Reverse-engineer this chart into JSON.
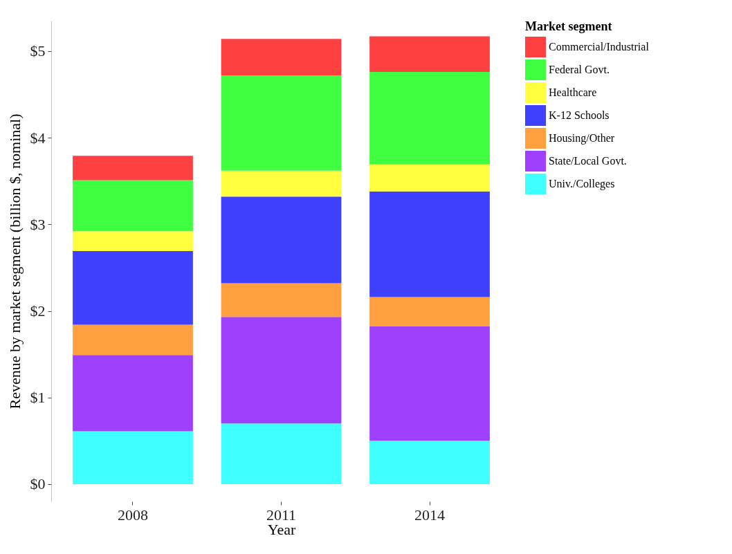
{
  "chart_data": {
    "type": "bar",
    "stacked": true,
    "xlabel": "Year",
    "ylabel": "Revenue by market segment (billion $, nominal)",
    "legend_title": "Market segment",
    "legend": "right",
    "grid": false,
    "categories": [
      "2008",
      "2011",
      "2014"
    ],
    "ylim": [
      -0.2,
      5.35
    ],
    "yticks": [
      {
        "value": 0,
        "label": "$0"
      },
      {
        "value": 1,
        "label": "$1"
      },
      {
        "value": 2,
        "label": "$2"
      },
      {
        "value": 3,
        "label": "$3"
      },
      {
        "value": 4,
        "label": "$4"
      },
      {
        "value": 5,
        "label": "$5"
      }
    ],
    "series": [
      {
        "name": "Univ./Colleges",
        "color": "#40ffff",
        "values": [
          0.61,
          0.7,
          0.5
        ]
      },
      {
        "name": "State/Local Govt.",
        "color": "#9f40ff",
        "values": [
          0.88,
          1.23,
          1.32
        ]
      },
      {
        "name": "Housing/Other",
        "color": "#ff9f40",
        "values": [
          0.35,
          0.39,
          0.34
        ]
      },
      {
        "name": "K-12 Schools",
        "color": "#4040ff",
        "values": [
          0.85,
          1.0,
          1.22
        ]
      },
      {
        "name": "Healthcare",
        "color": "#ffff40",
        "values": [
          0.23,
          0.3,
          0.31
        ]
      },
      {
        "name": "Federal Govt.",
        "color": "#40ff40",
        "values": [
          0.59,
          1.1,
          1.07
        ]
      },
      {
        "name": "Commercial/Industrial",
        "color": "#ff4040",
        "values": [
          0.28,
          0.42,
          0.41
        ]
      }
    ]
  }
}
